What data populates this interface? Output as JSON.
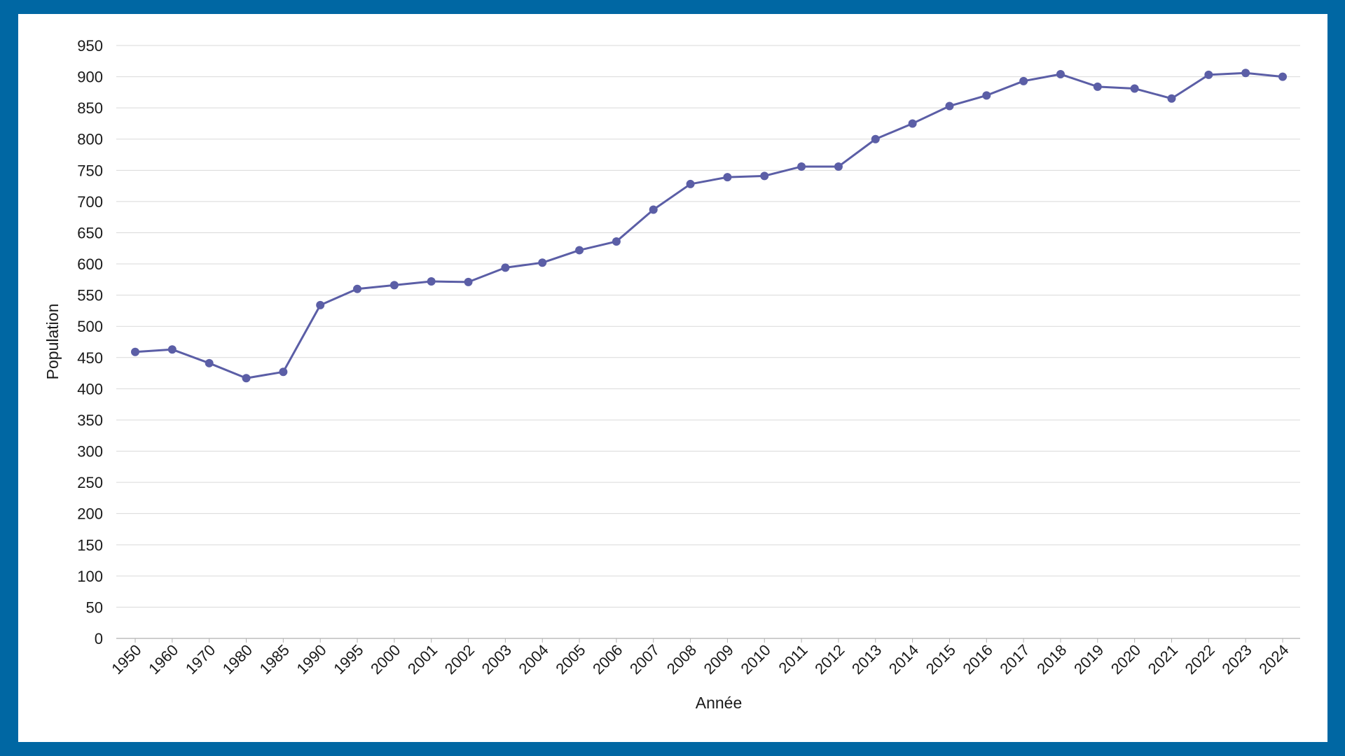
{
  "chart_data": {
    "type": "line",
    "xlabel": "Année",
    "ylabel": "Population",
    "ylim": [
      0,
      950
    ],
    "yticks": [
      0,
      50,
      100,
      150,
      200,
      250,
      300,
      350,
      400,
      450,
      500,
      550,
      600,
      650,
      700,
      750,
      800,
      850,
      900,
      950
    ],
    "grid": true,
    "legend": "none",
    "categories": [
      "1950",
      "1960",
      "1970",
      "1980",
      "1985",
      "1990",
      "1995",
      "2000",
      "2001",
      "2002",
      "2003",
      "2004",
      "2005",
      "2006",
      "2007",
      "2008",
      "2009",
      "2010",
      "2011",
      "2012",
      "2013",
      "2014",
      "2015",
      "2016",
      "2017",
      "2018",
      "2019",
      "2020",
      "2021",
      "2022",
      "2023",
      "2024"
    ],
    "series": [
      {
        "color": "#5b5ea6",
        "values": [
          459,
          463,
          441,
          417,
          427,
          534,
          560,
          566,
          572,
          571,
          594,
          602,
          622,
          636,
          687,
          728,
          739,
          741,
          756,
          756,
          800,
          825,
          853,
          870,
          893,
          904,
          884,
          881,
          865,
          903,
          906,
          900
        ]
      }
    ]
  }
}
